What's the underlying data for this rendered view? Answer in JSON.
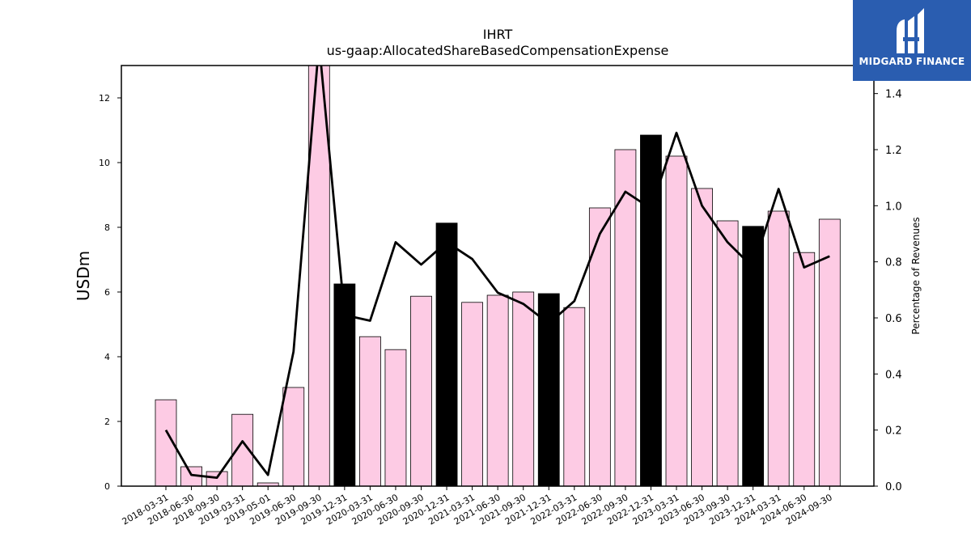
{
  "header": {
    "ticker": "IHRT",
    "concept": "us-gaap:AllocatedShareBasedCompensationExpense"
  },
  "logo": {
    "text": "MIDGARD FINANCE",
    "color": "#2a5db0"
  },
  "colors": {
    "bar": "#fdcbe4",
    "bar_highlight": "#000000",
    "line": "#000000"
  },
  "chart_data": {
    "type": "bar",
    "categories": [
      "2018-03-31",
      "2018-06-30",
      "2018-09-30",
      "2019-03-31",
      "2019-05-01",
      "2019-06-30",
      "2019-09-30",
      "2019-12-31",
      "2020-03-31",
      "2020-06-30",
      "2020-09-30",
      "2020-12-31",
      "2021-03-31",
      "2021-06-30",
      "2021-09-30",
      "2021-12-31",
      "2022-03-31",
      "2022-06-30",
      "2022-09-30",
      "2022-12-31",
      "2023-03-31",
      "2023-06-30",
      "2023-09-30",
      "2023-12-31",
      "2024-03-31",
      "2024-06-30",
      "2024-09-30"
    ],
    "series": [
      {
        "type": "bar",
        "axis": "left",
        "values": [
          2.67,
          0.6,
          0.45,
          2.22,
          0.1,
          3.05,
          13.2,
          6.25,
          4.62,
          4.22,
          5.87,
          8.13,
          5.68,
          5.9,
          6.0,
          5.95,
          5.52,
          8.6,
          10.4,
          10.85,
          10.2,
          9.2,
          8.2,
          8.03,
          8.5,
          7.22,
          8.25
        ],
        "highlight": [
          false,
          false,
          false,
          false,
          false,
          false,
          false,
          true,
          false,
          false,
          false,
          true,
          false,
          false,
          false,
          true,
          false,
          false,
          false,
          true,
          false,
          false,
          false,
          true,
          false,
          false,
          false
        ]
      },
      {
        "type": "line",
        "axis": "right",
        "values": [
          0.2,
          0.04,
          0.03,
          0.16,
          0.04,
          0.48,
          1.58,
          0.61,
          0.59,
          0.87,
          0.79,
          0.87,
          0.81,
          0.69,
          0.65,
          0.58,
          0.66,
          0.9,
          1.05,
          0.99,
          1.26,
          1.0,
          0.87,
          0.78,
          1.06,
          0.78,
          0.82
        ]
      }
    ],
    "ylabel": "USDm",
    "y2label": "Percentage of Revenues",
    "ylim": [
      0,
      13
    ],
    "y2lim": [
      0,
      1.5
    ],
    "yticks": [
      "0",
      "2",
      "4",
      "6",
      "8",
      "10",
      "12"
    ],
    "y2ticks": [
      "0.0",
      "0.2",
      "0.4",
      "0.6",
      "0.8",
      "1.0",
      "1.2",
      "1.4"
    ],
    "grid": false,
    "legend": "none"
  }
}
